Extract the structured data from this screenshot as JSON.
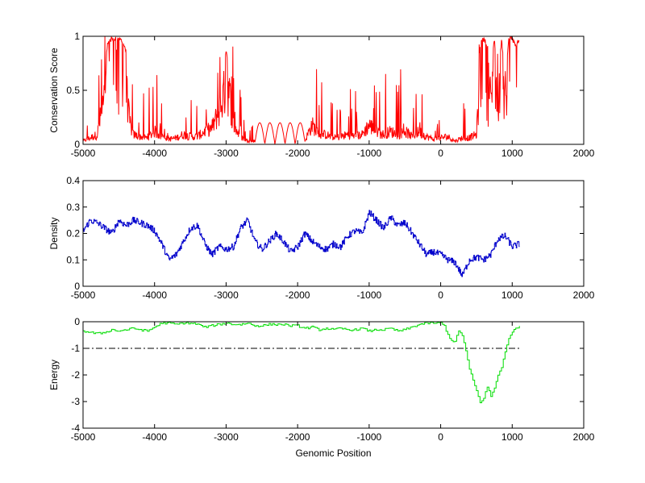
{
  "chart_data": [
    {
      "type": "line",
      "ylabel": "Conservation Score",
      "xlabel": "",
      "xlim": [
        -5000,
        2000
      ],
      "ylim": [
        0,
        1
      ],
      "xticks": [
        "-5000",
        "-4000",
        "-3000",
        "-2000",
        "-1000",
        "0",
        "1000",
        "2000"
      ],
      "yticks": [
        "0",
        "0.5",
        "1"
      ],
      "series": [
        {
          "color": "#ff0000",
          "style": "spiky",
          "x": [
            -5000,
            -4800,
            -4750,
            -4700,
            -4650,
            -4600,
            -4550,
            -4500,
            -4450,
            -4400,
            -4350,
            -4300,
            -4200,
            -4100,
            -4000,
            -3900,
            -3800,
            -3700,
            -3600,
            -3500,
            -3400,
            -3300,
            -3200,
            -3100,
            -3000,
            -2950,
            -2900,
            -2800,
            -2700,
            -2600,
            -2500,
            -2400,
            -2300,
            -2200,
            -2100,
            -2000,
            -1900,
            -1800,
            -1700,
            -1600,
            -1500,
            -1400,
            -1300,
            -1200,
            -1100,
            -1000,
            -900,
            -800,
            -700,
            -600,
            -500,
            -400,
            -300,
            -200,
            -100,
            0,
            100,
            200,
            300,
            400,
            500,
            550,
            600,
            650,
            700,
            750,
            800,
            850,
            900,
            950,
            1000,
            1050,
            1100
          ],
          "y": [
            0.05,
            0.15,
            0.45,
            0.7,
            0.98,
            1,
            1,
            1,
            0.98,
            0.9,
            0.35,
            0.15,
            0.12,
            0.1,
            0.2,
            0.12,
            0.08,
            0.1,
            0.15,
            0.12,
            0.12,
            0.2,
            0.25,
            0.5,
            0.9,
            0.75,
            0.3,
            0.12,
            0.05,
            0.05,
            0.15,
            0.2,
            0.18,
            0.2,
            0.2,
            0.2,
            0.05,
            0.3,
            0.15,
            0.15,
            0.1,
            0.12,
            0.15,
            0.12,
            0.15,
            0.3,
            0.2,
            0.15,
            0.2,
            0.15,
            0.2,
            0.12,
            0.2,
            0.12,
            0.08,
            0.1,
            0.12,
            0.05,
            0.1,
            0.1,
            0.15,
            0.95,
            1,
            0.95,
            0.7,
            1,
            0.5,
            1,
            0.6,
            1,
            1,
            0.95,
            1
          ]
        }
      ]
    },
    {
      "type": "line",
      "ylabel": "Density",
      "xlabel": "",
      "xlim": [
        -5000,
        2000
      ],
      "ylim": [
        0,
        0.4
      ],
      "xticks": [
        "-5000",
        "-4000",
        "-3000",
        "-2000",
        "-1000",
        "0",
        "1000",
        "2000"
      ],
      "yticks": [
        "0",
        "0.1",
        "0.2",
        "0.3",
        "0.4"
      ],
      "series": [
        {
          "color": "#0000cc",
          "style": "step-noisy",
          "x": [
            -5000,
            -4900,
            -4800,
            -4700,
            -4600,
            -4500,
            -4400,
            -4300,
            -4200,
            -4100,
            -4000,
            -3900,
            -3800,
            -3700,
            -3600,
            -3500,
            -3400,
            -3300,
            -3200,
            -3100,
            -3000,
            -2900,
            -2800,
            -2700,
            -2600,
            -2500,
            -2400,
            -2300,
            -2200,
            -2100,
            -2000,
            -1900,
            -1800,
            -1700,
            -1600,
            -1500,
            -1400,
            -1300,
            -1200,
            -1100,
            -1000,
            -900,
            -800,
            -700,
            -600,
            -500,
            -400,
            -300,
            -200,
            -100,
            0,
            100,
            200,
            300,
            400,
            500,
            600,
            700,
            800,
            900,
            1000,
            1100
          ],
          "y": [
            0.21,
            0.25,
            0.24,
            0.22,
            0.2,
            0.25,
            0.23,
            0.25,
            0.24,
            0.23,
            0.21,
            0.16,
            0.1,
            0.12,
            0.17,
            0.22,
            0.23,
            0.16,
            0.12,
            0.15,
            0.14,
            0.15,
            0.22,
            0.25,
            0.17,
            0.14,
            0.17,
            0.2,
            0.17,
            0.13,
            0.15,
            0.2,
            0.17,
            0.15,
            0.14,
            0.16,
            0.15,
            0.19,
            0.21,
            0.2,
            0.28,
            0.25,
            0.22,
            0.26,
            0.23,
            0.24,
            0.2,
            0.16,
            0.12,
            0.13,
            0.12,
            0.1,
            0.09,
            0.04,
            0.1,
            0.11,
            0.1,
            0.12,
            0.18,
            0.19,
            0.15,
            0.16
          ]
        }
      ]
    },
    {
      "type": "line",
      "ylabel": "Energy",
      "xlabel": "Genomic Position",
      "xlim": [
        -5000,
        2000
      ],
      "ylim": [
        -4,
        0
      ],
      "xticks": [
        "-5000",
        "-4000",
        "-3000",
        "-2000",
        "-1000",
        "0",
        "1000",
        "2000"
      ],
      "yticks": [
        "-4",
        "-3",
        "-2",
        "-1",
        "0"
      ],
      "series": [
        {
          "color": "#00dd00",
          "style": "step",
          "x": [
            -5000,
            -4900,
            -4800,
            -4700,
            -4600,
            -4500,
            -4400,
            -4300,
            -4200,
            -4100,
            -4000,
            -3900,
            -3800,
            -3700,
            -3600,
            -3500,
            -3400,
            -3300,
            -3200,
            -3100,
            -3000,
            -2900,
            -2800,
            -2700,
            -2600,
            -2500,
            -2400,
            -2300,
            -2200,
            -2100,
            -2000,
            -1900,
            -1800,
            -1700,
            -1600,
            -1500,
            -1400,
            -1300,
            -1200,
            -1100,
            -1000,
            -900,
            -800,
            -700,
            -600,
            -500,
            -400,
            -300,
            -200,
            -100,
            0,
            50,
            100,
            150,
            200,
            250,
            300,
            350,
            400,
            450,
            500,
            550,
            600,
            650,
            700,
            750,
            800,
            850,
            900,
            950,
            1000,
            1050,
            1100
          ],
          "y": [
            -0.35,
            -0.4,
            -0.45,
            -0.4,
            -0.3,
            -0.35,
            -0.3,
            -0.25,
            -0.3,
            -0.35,
            -0.2,
            -0.05,
            -0.05,
            -0.1,
            -0.05,
            -0.05,
            -0.1,
            -0.2,
            -0.15,
            -0.1,
            -0.05,
            -0.1,
            -0.1,
            -0.05,
            -0.15,
            -0.15,
            -0.1,
            -0.1,
            -0.1,
            -0.15,
            -0.15,
            -0.25,
            -0.2,
            -0.3,
            -0.25,
            -0.3,
            -0.25,
            -0.3,
            -0.3,
            -0.25,
            -0.35,
            -0.3,
            -0.3,
            -0.25,
            -0.35,
            -0.3,
            -0.2,
            -0.1,
            -0.05,
            -0.05,
            -0.05,
            -0.15,
            -0.5,
            -0.7,
            -0.75,
            -0.35,
            -0.5,
            -1.1,
            -1.8,
            -2.2,
            -2.6,
            -3.05,
            -2.85,
            -2.45,
            -2.8,
            -2.5,
            -2.0,
            -1.7,
            -1.1,
            -0.65,
            -0.4,
            -0.2,
            -0.2
          ]
        },
        {
          "color": "#000000",
          "style": "dashdot",
          "x": [
            -5000,
            1100
          ],
          "y": [
            -1,
            -1
          ]
        }
      ]
    }
  ]
}
